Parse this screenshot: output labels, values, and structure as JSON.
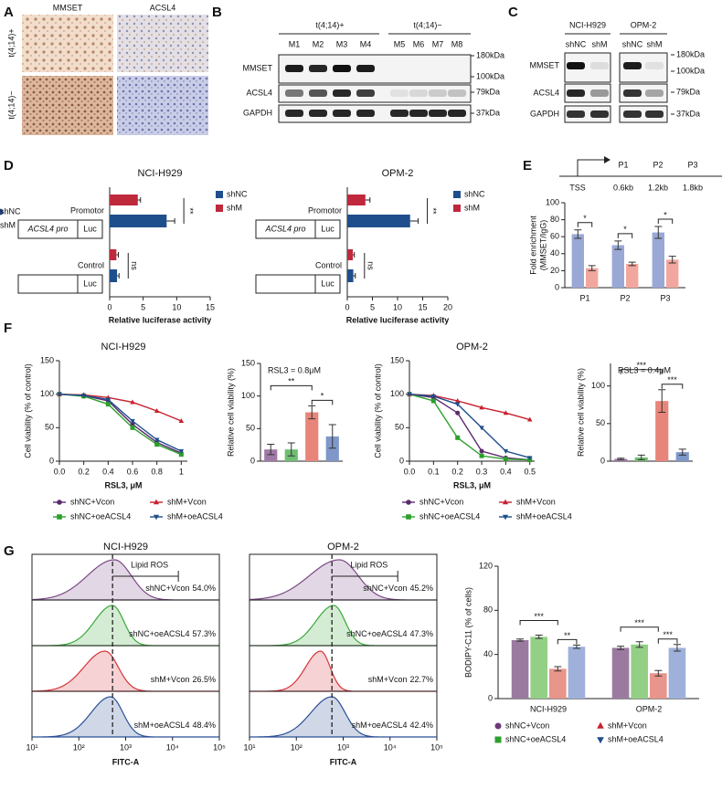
{
  "panel_labels": [
    "A",
    "B",
    "C",
    "D",
    "E",
    "F",
    "G"
  ],
  "A": {
    "columns": [
      "MMSET",
      "ACSL4"
    ],
    "rows": [
      "t(4;14)+",
      "t(4;14)−"
    ]
  },
  "B": {
    "groups": [
      "t(4;14)+",
      "t(4;14)−"
    ],
    "lanes": [
      "M1",
      "M2",
      "M3",
      "M4",
      "M5",
      "M6",
      "M7",
      "M8"
    ],
    "proteins": [
      "MMSET",
      "ACSL4",
      "GAPDH"
    ],
    "markers": [
      "180kDa",
      "100kDa",
      "79kDa",
      "37kDa"
    ]
  },
  "C": {
    "groups": [
      "NCI-H929",
      "OPM-2"
    ],
    "lanes": [
      "shNC",
      "shM",
      "shNC",
      "shM"
    ],
    "proteins": [
      "MMSET",
      "ACSL4",
      "GAPDH"
    ],
    "markers": [
      "180kDa",
      "100kDa",
      "79kDa",
      "37kDa"
    ]
  },
  "chart_data": [
    {
      "type": "hbar",
      "title": "NCI-H929",
      "categories": [
        "Promotor",
        "Control"
      ],
      "constructs": [
        [
          "ACSL4 pro",
          "Luc"
        ],
        [
          "Luc"
        ]
      ],
      "series": [
        {
          "name": "shNC",
          "color": "#1f4e8c",
          "values": [
            8.5,
            1.1
          ],
          "errors": [
            1.2,
            0.3
          ]
        },
        {
          "name": "shM",
          "color": "#c0283c",
          "values": [
            4.2,
            1.0
          ],
          "errors": [
            0.4,
            0.3
          ]
        }
      ],
      "xlabel": "Relative luciferase activity",
      "xlim": [
        0,
        15
      ],
      "xticks": [
        0,
        5,
        10,
        15
      ],
      "annotations": [
        "**",
        "ns"
      ]
    },
    {
      "type": "hbar",
      "title": "OPM-2",
      "categories": [
        "Promotor",
        "Control"
      ],
      "constructs": [
        [
          "ACSL4 pro",
          "Luc"
        ],
        [
          "Luc"
        ]
      ],
      "series": [
        {
          "name": "shNC",
          "color": "#1f4e8c",
          "values": [
            12.5,
            1.2
          ],
          "errors": [
            1.6,
            0.4
          ]
        },
        {
          "name": "shM",
          "color": "#c0283c",
          "values": [
            3.6,
            1.1
          ],
          "errors": [
            0.9,
            0.3
          ]
        }
      ],
      "xlabel": "Relative luciferase activity",
      "xlim": [
        0,
        20
      ],
      "xticks": [
        0,
        5,
        10,
        15,
        20
      ],
      "annotations": [
        "**",
        "ns"
      ]
    },
    {
      "type": "bar",
      "categories": [
        "P1",
        "P2",
        "P3"
      ],
      "series": [
        {
          "name": "shNC",
          "color": "#9aa8d6",
          "marker": "circle",
          "marker_color": "#2a4f96",
          "values": [
            63,
            50,
            65
          ],
          "errors": [
            5,
            5,
            7
          ]
        },
        {
          "name": "shM",
          "color": "#f2a79e",
          "marker": "triangle",
          "marker_color": "#d6343a",
          "values": [
            23,
            28,
            33
          ],
          "errors": [
            3,
            2,
            4
          ]
        }
      ],
      "ylabel": [
        "Fold enrichment",
        "(MMSET/IgG)"
      ],
      "ylim": [
        0,
        100
      ],
      "yticks": [
        0,
        20,
        40,
        60,
        80,
        100
      ],
      "annotations": [
        "*",
        "*",
        "*"
      ],
      "diagram": {
        "tss": "TSS",
        "sites": [
          "P1",
          "P2",
          "P3"
        ],
        "distances": [
          "0.6kb",
          "1.2kb",
          "1.8kb"
        ]
      }
    },
    {
      "type": "line",
      "title": "NCI-H929",
      "x": [
        0,
        0.2,
        0.4,
        0.6,
        0.8,
        1
      ],
      "xlim": [
        0,
        1.05
      ],
      "xticks": [
        {
          "value": 0,
          "label": "0.0"
        },
        0.2,
        0.4,
        0.6,
        0.8,
        1
      ],
      "ylim": [
        0,
        150
      ],
      "yticks": [
        0,
        50,
        100,
        150
      ],
      "xlabel": "RSL3, μM",
      "ylabel": "Cell viability (% of control)",
      "series": [
        {
          "name": "shNC+Vcon",
          "color": "#5b2a6e",
          "marker": "circle",
          "values": [
            100,
            98,
            90,
            55,
            28,
            12
          ]
        },
        {
          "name": "shNC+oeACSL4",
          "color": "#2ca02c",
          "marker": "square",
          "values": [
            100,
            97,
            85,
            50,
            25,
            10
          ]
        },
        {
          "name": "shM+Vcon",
          "color": "#c8202f",
          "marker": "triangle",
          "values": [
            100,
            99,
            95,
            88,
            75,
            60
          ]
        },
        {
          "name": "shM+oeACSL4",
          "color": "#1f4e8c",
          "marker": "triangle-down",
          "values": [
            100,
            98,
            92,
            60,
            32,
            15
          ]
        }
      ]
    },
    {
      "type": "bar",
      "categories": [
        null,
        null,
        null,
        null
      ],
      "values": [
        18,
        18,
        75,
        38
      ],
      "errors": [
        8,
        10,
        10,
        18
      ],
      "colors": [
        "#a07aa6",
        "#6fbf73",
        "#e8857a",
        "#7f97c9"
      ],
      "ylabel": "Relative cell viability (%)",
      "ylim": [
        0,
        150
      ],
      "yticks": [
        0,
        50,
        100,
        150
      ],
      "note": "RSL3 = 0.8μM",
      "annotations": [
        "**",
        "*"
      ]
    },
    {
      "type": "line",
      "title": "OPM-2",
      "x": [
        0,
        0.1,
        0.2,
        0.3,
        0.4,
        0.5
      ],
      "xlim": [
        0,
        0.52
      ],
      "xticks": [
        {
          "value": 0,
          "label": "0.0"
        },
        0.1,
        0.2,
        0.3,
        0.4,
        0.5
      ],
      "ylim": [
        0,
        150
      ],
      "yticks": [
        0,
        50,
        100,
        150
      ],
      "xlabel": "RSL3, μM",
      "ylabel": "Cell viability (% of control)",
      "series": [
        {
          "name": "shNC+Vcon",
          "color": "#5b2a6e",
          "marker": "circle",
          "values": [
            100,
            95,
            72,
            15,
            5,
            2
          ]
        },
        {
          "name": "shNC+oeACSL4",
          "color": "#2ca02c",
          "marker": "square",
          "values": [
            100,
            90,
            35,
            8,
            3,
            2
          ]
        },
        {
          "name": "shM+Vcon",
          "color": "#c8202f",
          "marker": "triangle",
          "values": [
            100,
            98,
            90,
            80,
            72,
            62
          ]
        },
        {
          "name": "shM+oeACSL4",
          "color": "#1f4e8c",
          "marker": "triangle-down",
          "values": [
            100,
            97,
            85,
            50,
            15,
            5
          ]
        }
      ]
    },
    {
      "type": "bar",
      "categories": [
        null,
        null,
        null,
        null
      ],
      "values": [
        3,
        5,
        80,
        12
      ],
      "errors": [
        1,
        3,
        15,
        4
      ],
      "colors": [
        "#a07aa6",
        "#6fbf73",
        "#e8857a",
        "#7f97c9"
      ],
      "ylabel": "Relative cell viability (%)",
      "ylim": [
        0,
        130
      ],
      "yticks": [
        0,
        50,
        100
      ],
      "note": "RSL3 = 0.4μM",
      "annotations": [
        "***",
        "***"
      ]
    },
    {
      "type": "flow",
      "title": "NCI-H929",
      "gate": "Lipid ROS",
      "xlabel": "FITC-A",
      "log": true,
      "xlim": [
        10,
        100000
      ],
      "xticks": [
        {
          "value": 10,
          "label": "10¹"
        },
        {
          "value": 100,
          "label": "10²"
        },
        {
          "value": 1000,
          "label": "10³"
        },
        {
          "value": 10000,
          "label": "10⁴"
        },
        {
          "value": 100000,
          "label": "10⁵"
        }
      ],
      "series": [
        {
          "name": "shNC+Vcon",
          "label": "54.0%",
          "color": "#7b4a86"
        },
        {
          "name": "shNC+oeACSL4",
          "label": "57.3%",
          "color": "#3aa83a"
        },
        {
          "name": "shM+Vcon",
          "label": "26.5%",
          "color": "#d6343a"
        },
        {
          "name": "shM+oeACSL4",
          "label": "48.4%",
          "color": "#2a4f96"
        }
      ]
    },
    {
      "type": "flow",
      "title": "OPM-2",
      "gate": "Lipid ROS",
      "xlabel": "FITC-A",
      "log": true,
      "xlim": [
        10,
        100000
      ],
      "xticks": [
        {
          "value": 10,
          "label": "10¹"
        },
        {
          "value": 100,
          "label": "10²"
        },
        {
          "value": 1000,
          "label": "10³"
        },
        {
          "value": 10000,
          "label": "10⁴"
        },
        {
          "value": 100000,
          "label": "10⁵"
        }
      ],
      "series": [
        {
          "name": "shNC+Vcon",
          "label": "45.2%",
          "color": "#7b4a86"
        },
        {
          "name": "shNC+oeACSL4",
          "label": "47.3%",
          "color": "#3aa83a"
        },
        {
          "name": "shM+Vcon",
          "label": "22.7%",
          "color": "#d6343a"
        },
        {
          "name": "shM+oeACSL4",
          "label": "42.4%",
          "color": "#2a4f96"
        }
      ]
    },
    {
      "type": "bar",
      "categories": [
        "NCI-H929",
        "OPM-2"
      ],
      "series": [
        {
          "name": "shNC+Vcon",
          "color": "#9b7aa0",
          "marker": "circle",
          "marker_color": "#6b3a78",
          "values": [
            53,
            46
          ],
          "errors": [
            1,
            1.5
          ]
        },
        {
          "name": "shNC+oeACSL4",
          "color": "#94cf86",
          "marker": "square",
          "marker_color": "#2ca02c",
          "values": [
            56,
            49
          ],
          "errors": [
            1.5,
            2.5
          ]
        },
        {
          "name": "shM+Vcon",
          "color": "#e8958c",
          "marker": "triangle",
          "marker_color": "#c8202f",
          "values": [
            27,
            23
          ],
          "errors": [
            2,
            2.5
          ]
        },
        {
          "name": "shM+oeACSL4",
          "color": "#9fb0da",
          "marker": "triangle-down",
          "marker_color": "#1f4e8c",
          "values": [
            47,
            46
          ],
          "errors": [
            1.5,
            3
          ]
        }
      ],
      "ylabel": "BODIPY-C11 (% of cells)",
      "ylim": [
        0,
        120
      ],
      "yticks": [
        0,
        40,
        80,
        120
      ],
      "annotations": [
        "***",
        "**",
        "***",
        "***"
      ]
    }
  ]
}
